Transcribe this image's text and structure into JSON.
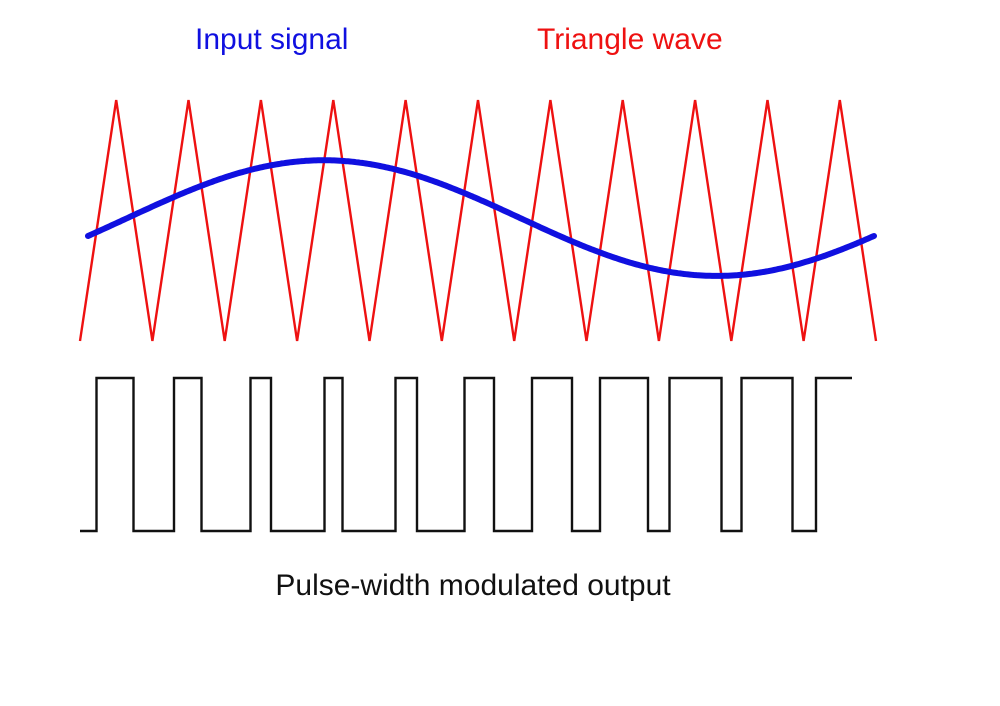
{
  "labels": {
    "input": "Input signal",
    "triangle": "Triangle wave",
    "output": "Pulse-width modulated output"
  },
  "colors": {
    "input": "#1010e0",
    "triangle": "#ee1111",
    "output": "#111111"
  },
  "diagram": {
    "input_signal": {
      "shape": "sine",
      "cycles": 1.0,
      "amplitude": 0.48
    },
    "triangle_wave": {
      "periods": 11,
      "min": -1,
      "max": 1
    },
    "pwm_output": {
      "rule": "high while triangle exceeds input signal"
    }
  }
}
